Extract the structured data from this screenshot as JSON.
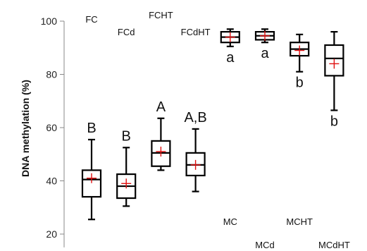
{
  "chart_data": {
    "type": "boxplot",
    "ylabel": "DNA methylation (%)",
    "ylim": [
      15,
      100
    ],
    "yticks": [
      20,
      40,
      60,
      80,
      100
    ],
    "grid": false,
    "series": [
      {
        "name": "FC",
        "label_pos": "top",
        "whisker_low": 25.5,
        "q1": 34,
        "median": 40.5,
        "q3": 44,
        "whisker_high": 55.5,
        "mean": 41,
        "letter": "B"
      },
      {
        "name": "FCd",
        "label_pos": "top",
        "whisker_low": 30.5,
        "q1": 33.5,
        "median": 38,
        "q3": 42.5,
        "whisker_high": 52.5,
        "mean": 39,
        "letter": "B"
      },
      {
        "name": "FCHT",
        "label_pos": "top",
        "whisker_low": 44,
        "q1": 45.5,
        "median": 50.5,
        "q3": 55,
        "whisker_high": 63.5,
        "mean": 51,
        "letter": "A"
      },
      {
        "name": "FCdHT",
        "label_pos": "top",
        "whisker_low": 36,
        "q1": 42,
        "median": 46,
        "q3": 50.5,
        "whisker_high": 59.5,
        "mean": 46,
        "letter": "A,B"
      },
      {
        "name": "MC",
        "label_pos": "bottom",
        "whisker_low": 90.5,
        "q1": 92,
        "median": 94,
        "q3": 96,
        "whisker_high": 97,
        "mean": 94,
        "letter": "a"
      },
      {
        "name": "MCd",
        "label_pos": "bottom-low",
        "whisker_low": 92,
        "q1": 93,
        "median": 94.5,
        "q3": 96,
        "whisker_high": 97,
        "mean": 94.5,
        "letter": "a"
      },
      {
        "name": "MCHT",
        "label_pos": "bottom",
        "whisker_low": 81,
        "q1": 87,
        "median": 89.5,
        "q3": 92,
        "whisker_high": 95,
        "mean": 89,
        "letter": "b"
      },
      {
        "name": "MCdHT",
        "label_pos": "bottom-low",
        "whisker_low": 66.5,
        "q1": 79.5,
        "median": 86,
        "q3": 91,
        "whisker_high": 96,
        "mean": 84,
        "letter": "b"
      }
    ]
  }
}
